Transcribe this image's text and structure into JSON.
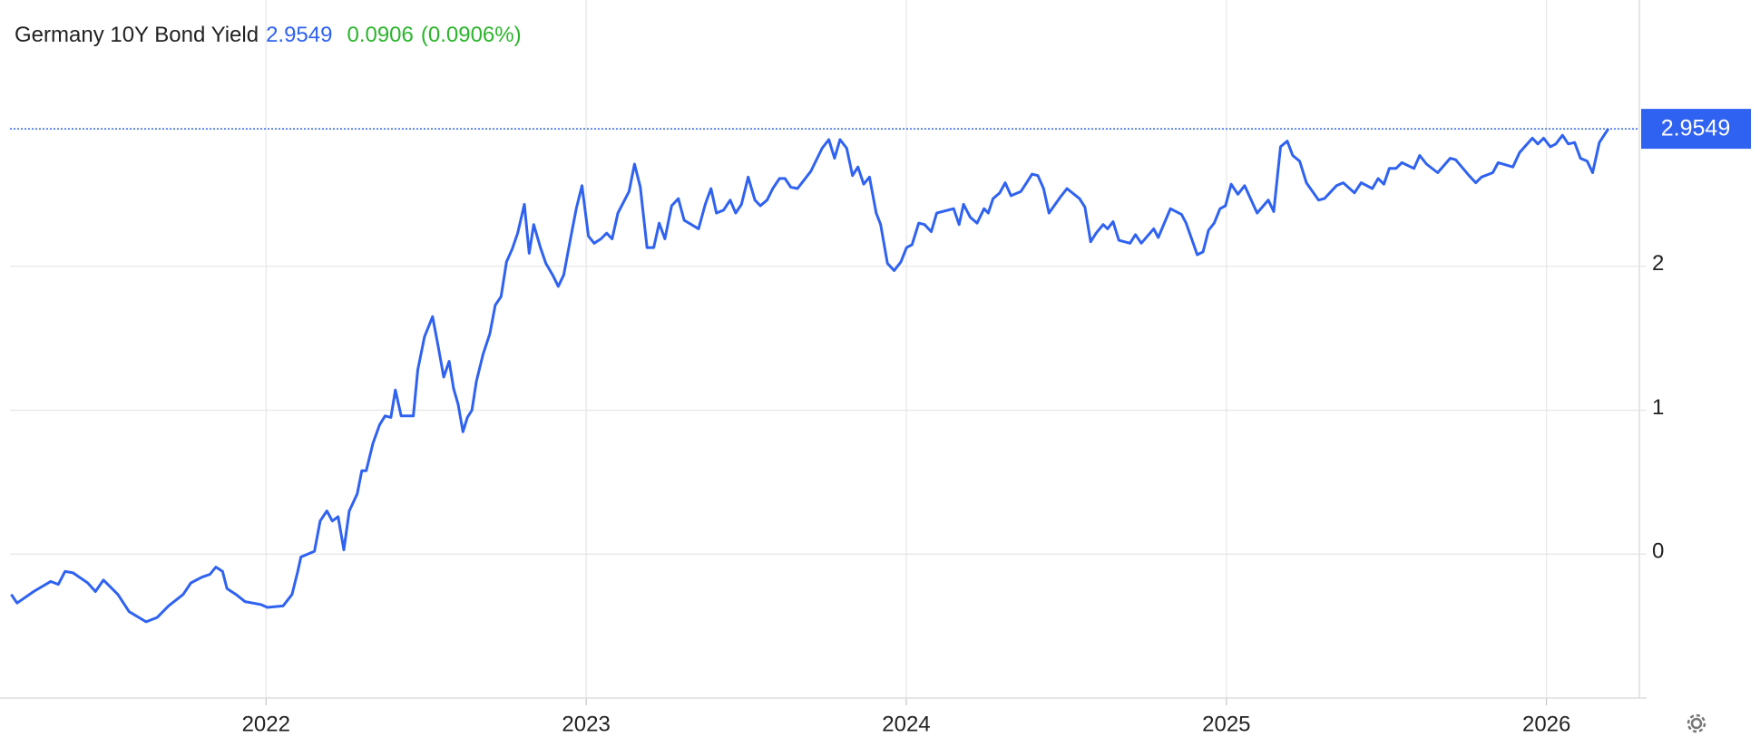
{
  "chart_data": {
    "type": "line",
    "title": "Germany 10Y Bond Yield",
    "last_value": 2.9549,
    "change": 0.0906,
    "change_percent": "(0.0906%)",
    "color": "#2f62f0",
    "change_color": "#2bb52b",
    "grid": true,
    "xlim": [
      2021.2,
      2026.29
    ],
    "xticks": [
      2022,
      2023,
      2024,
      2025,
      2026
    ],
    "ylim": [
      -1,
      3.85
    ],
    "yticks": [
      0,
      1,
      2
    ],
    "x": [
      2021.204,
      2021.222,
      2021.274,
      2021.327,
      2021.351,
      2021.372,
      2021.397,
      2021.443,
      2021.467,
      2021.492,
      2021.537,
      2021.572,
      2021.625,
      2021.66,
      2021.695,
      2021.741,
      2021.765,
      2021.8,
      2021.825,
      2021.843,
      2021.864,
      2021.878,
      2021.906,
      2021.934,
      2021.983,
      2022.004,
      2022.053,
      2022.081,
      2022.099,
      2022.109,
      2022.151,
      2022.169,
      2022.19,
      2022.207,
      2022.225,
      2022.243,
      2022.26,
      2022.285,
      2022.299,
      2022.313,
      2022.334,
      2022.355,
      2022.372,
      2022.39,
      2022.404,
      2022.422,
      2022.46,
      2022.474,
      2022.495,
      2022.52,
      2022.537,
      2022.555,
      2022.572,
      2022.586,
      2022.6,
      2022.615,
      2022.629,
      2022.643,
      2022.657,
      2022.678,
      2022.699,
      2022.716,
      2022.734,
      2022.751,
      2022.769,
      2022.786,
      2022.807,
      2022.822,
      2022.836,
      2022.857,
      2022.874,
      2022.895,
      2022.913,
      2022.93,
      2022.951,
      2022.969,
      2022.987,
      2023.007,
      2023.025,
      2023.046,
      2023.064,
      2023.081,
      2023.099,
      2023.134,
      2023.151,
      2023.169,
      2023.19,
      2023.211,
      2023.228,
      2023.246,
      2023.267,
      2023.288,
      2023.306,
      2023.351,
      2023.372,
      2023.39,
      2023.407,
      2023.429,
      2023.45,
      2023.467,
      2023.485,
      2023.506,
      2023.527,
      2023.544,
      2023.565,
      2023.583,
      2023.604,
      2023.621,
      2023.639,
      2023.66,
      2023.702,
      2023.737,
      2023.758,
      2023.776,
      2023.793,
      2023.814,
      2023.832,
      2023.849,
      2023.867,
      2023.885,
      2023.906,
      2023.92,
      2023.941,
      2023.962,
      2023.983,
      2024.001,
      2024.018,
      2024.039,
      2024.057,
      2024.078,
      2024.095,
      2024.148,
      2024.165,
      2024.179,
      2024.2,
      2024.221,
      2024.243,
      2024.256,
      2024.271,
      2024.292,
      2024.309,
      2024.327,
      2024.358,
      2024.376,
      2024.393,
      2024.411,
      2024.429,
      2024.446,
      2024.481,
      2024.502,
      2024.541,
      2024.558,
      2024.576,
      2024.593,
      2024.615,
      2024.629,
      2024.646,
      2024.664,
      2024.699,
      2024.716,
      2024.734,
      2024.773,
      2024.787,
      2024.825,
      2024.86,
      2024.874,
      2024.909,
      2024.927,
      2024.944,
      2024.962,
      2024.98,
      2024.997,
      2025.015,
      2025.036,
      2025.057,
      2025.096,
      2025.131,
      2025.148,
      2025.169,
      2025.19,
      2025.207,
      2025.229,
      2025.25,
      2025.288,
      2025.306,
      2025.344,
      2025.365,
      2025.4,
      2025.421,
      2025.456,
      2025.474,
      2025.492,
      2025.509,
      2025.53,
      2025.548,
      2025.586,
      2025.604,
      2025.625,
      2025.66,
      2025.699,
      2025.716,
      2025.758,
      2025.779,
      2025.797,
      2025.832,
      2025.849,
      2025.895,
      2025.916,
      2025.956,
      2025.973,
      2025.991,
      2026.012,
      2026.029,
      2026.05,
      2026.068,
      2026.088,
      2026.106,
      2026.127,
      2026.144,
      2026.165,
      2026.193
    ],
    "values": [
      -0.28,
      -0.34,
      -0.26,
      -0.19,
      -0.21,
      -0.12,
      -0.13,
      -0.2,
      -0.26,
      -0.18,
      -0.28,
      -0.4,
      -0.47,
      -0.44,
      -0.36,
      -0.28,
      -0.2,
      -0.16,
      -0.14,
      -0.09,
      -0.12,
      -0.24,
      -0.28,
      -0.33,
      -0.35,
      -0.37,
      -0.36,
      -0.28,
      -0.12,
      -0.02,
      0.02,
      0.23,
      0.3,
      0.23,
      0.26,
      0.03,
      0.3,
      0.42,
      0.58,
      0.58,
      0.77,
      0.9,
      0.96,
      0.95,
      1.14,
      0.96,
      0.96,
      1.28,
      1.51,
      1.65,
      1.45,
      1.23,
      1.34,
      1.15,
      1.04,
      0.85,
      0.95,
      1.0,
      1.2,
      1.39,
      1.53,
      1.73,
      1.79,
      2.03,
      2.12,
      2.23,
      2.43,
      2.09,
      2.29,
      2.13,
      2.02,
      1.94,
      1.86,
      1.94,
      2.19,
      2.4,
      2.56,
      2.21,
      2.16,
      2.19,
      2.23,
      2.19,
      2.37,
      2.52,
      2.71,
      2.55,
      2.13,
      2.13,
      2.3,
      2.19,
      2.42,
      2.47,
      2.32,
      2.26,
      2.43,
      2.54,
      2.37,
      2.39,
      2.46,
      2.37,
      2.43,
      2.62,
      2.46,
      2.42,
      2.46,
      2.54,
      2.61,
      2.61,
      2.55,
      2.54,
      2.66,
      2.82,
      2.88,
      2.75,
      2.88,
      2.82,
      2.63,
      2.69,
      2.57,
      2.62,
      2.37,
      2.29,
      2.02,
      1.97,
      2.03,
      2.13,
      2.15,
      2.3,
      2.29,
      2.24,
      2.37,
      2.4,
      2.29,
      2.43,
      2.34,
      2.3,
      2.4,
      2.37,
      2.47,
      2.51,
      2.58,
      2.49,
      2.52,
      2.58,
      2.64,
      2.63,
      2.54,
      2.37,
      2.48,
      2.54,
      2.47,
      2.41,
      2.17,
      2.23,
      2.29,
      2.26,
      2.31,
      2.18,
      2.16,
      2.22,
      2.16,
      2.26,
      2.2,
      2.4,
      2.36,
      2.3,
      2.08,
      2.1,
      2.25,
      2.3,
      2.4,
      2.42,
      2.57,
      2.5,
      2.56,
      2.37,
      2.46,
      2.38,
      2.83,
      2.87,
      2.77,
      2.73,
      2.58,
      2.46,
      2.47,
      2.56,
      2.58,
      2.51,
      2.58,
      2.54,
      2.61,
      2.57,
      2.68,
      2.68,
      2.72,
      2.68,
      2.77,
      2.71,
      2.65,
      2.75,
      2.74,
      2.63,
      2.58,
      2.62,
      2.65,
      2.72,
      2.69,
      2.79,
      2.89,
      2.85,
      2.89,
      2.83,
      2.85,
      2.91,
      2.85,
      2.86,
      2.75,
      2.73,
      2.65,
      2.86,
      2.9549
    ]
  }
}
